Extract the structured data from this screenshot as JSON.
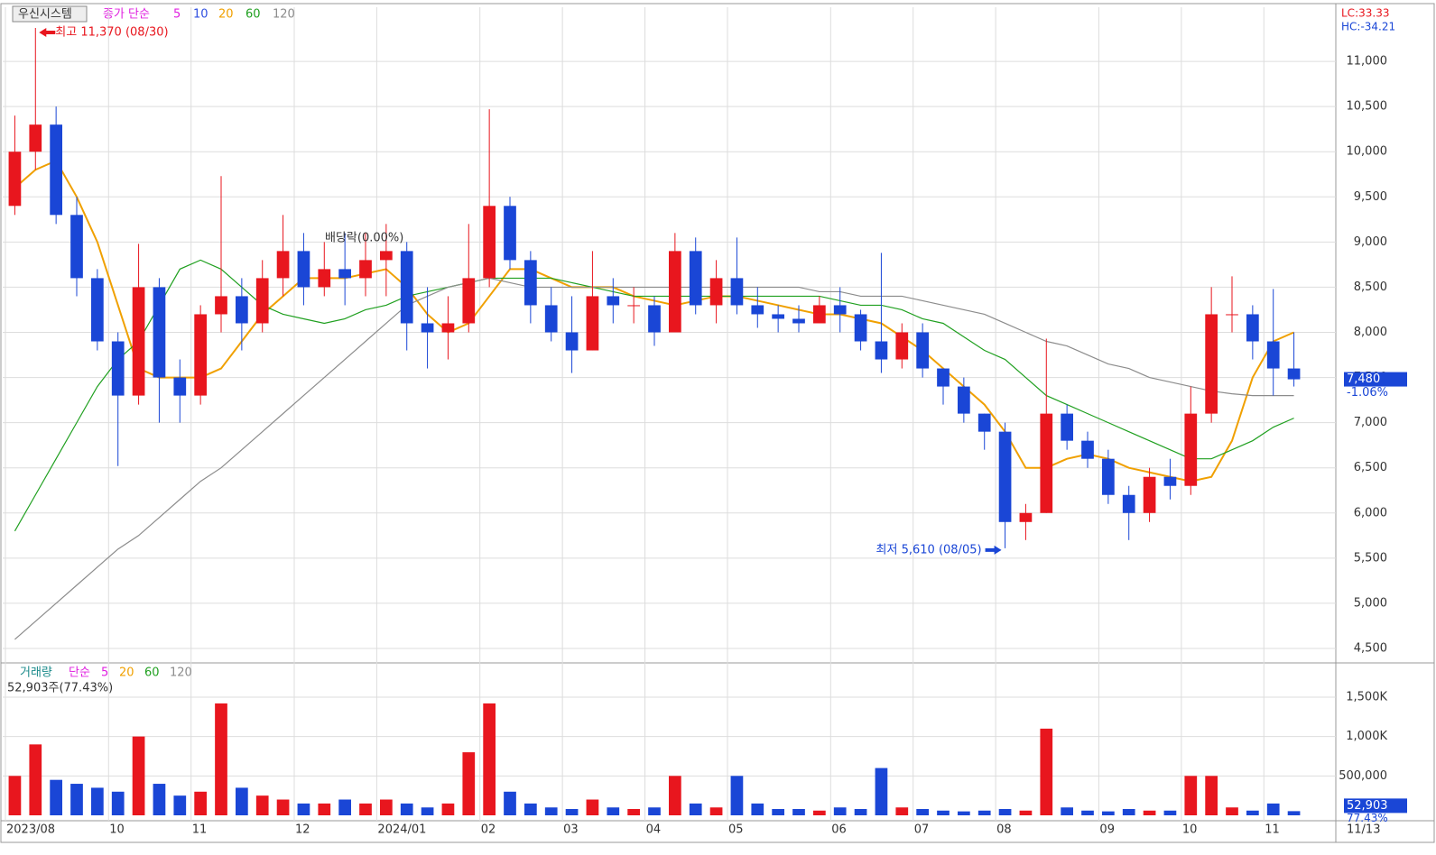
{
  "chart_data": {
    "type": "candlestick",
    "stock_name": "우신시스템",
    "price_legend": {
      "label": "종가 단순",
      "items": [
        {
          "name": "5",
          "color": "#e020e0"
        },
        {
          "name": "10",
          "color": "#2f4fe0"
        }
      ]
    },
    "categories": [
      "2023/08",
      null,
      null,
      null,
      null,
      "10",
      null,
      null,
      null,
      "11",
      null,
      null,
      null,
      null,
      "12",
      null,
      null,
      null,
      "2024/01",
      null,
      null,
      null,
      null,
      "02",
      null,
      null,
      null,
      "03",
      null,
      null,
      null,
      "04",
      null,
      null,
      null,
      "05",
      null,
      null,
      null,
      null,
      "06",
      null,
      null,
      null,
      "07",
      null,
      null,
      null,
      "08",
      null,
      null,
      null,
      null,
      "09",
      null,
      null,
      null,
      "10",
      null,
      null,
      null,
      "11",
      null
    ],
    "last_date": "11/13",
    "open": [
      9400,
      10000,
      10300,
      9300,
      8600,
      7900,
      7300,
      8500,
      7500,
      7300,
      8200,
      8400,
      8100,
      8600,
      8900,
      8500,
      8700,
      8600,
      8800,
      8900,
      8100,
      8000,
      8100,
      8600,
      9400,
      8800,
      8300,
      8000,
      7800,
      8400,
      8300,
      8300,
      8000,
      8900,
      8300,
      8600,
      8300,
      8200,
      8150,
      8100,
      8300,
      8200,
      7900,
      7700,
      8000,
      7600,
      7400,
      7100,
      6900,
      5900,
      6000,
      7100,
      6800,
      6600,
      6200,
      6000,
      6400,
      6300,
      7100,
      8200,
      8200,
      7900,
      7600
    ],
    "high": [
      10400,
      11370,
      10500,
      9500,
      8700,
      8000,
      8980,
      8600,
      7700,
      8300,
      9730,
      8600,
      8800,
      9300,
      9100,
      9000,
      9100,
      9100,
      9200,
      9000,
      8500,
      8400,
      9200,
      10470,
      9500,
      8900,
      8500,
      8400,
      8900,
      8600,
      8500,
      8400,
      9100,
      9050,
      8800,
      9050,
      8500,
      8300,
      8300,
      8400,
      8500,
      8250,
      8880,
      8100,
      8100,
      7600,
      7500,
      7100,
      7000,
      6100,
      7930,
      7200,
      6900,
      6700,
      6300,
      6500,
      6600,
      7400,
      8500,
      8620,
      8300,
      8480,
      8000
    ],
    "low": [
      9300,
      9800,
      9200,
      8400,
      7800,
      6520,
      7200,
      7000,
      7000,
      7200,
      8000,
      7800,
      8000,
      8400,
      8300,
      8400,
      8300,
      8400,
      8400,
      7800,
      7600,
      7700,
      8000,
      8500,
      8700,
      8100,
      7900,
      7550,
      7800,
      8100,
      8100,
      7850,
      8000,
      8200,
      8100,
      8200,
      8050,
      8000,
      8000,
      8100,
      8000,
      7800,
      7550,
      7600,
      7500,
      7200,
      7000,
      6700,
      5610,
      5700,
      6000,
      6700,
      6500,
      6100,
      5700,
      5900,
      6150,
      6200,
      7000,
      8000,
      7700,
      7300,
      7400
    ],
    "close": [
      10000,
      10300,
      9300,
      8600,
      7900,
      7300,
      8500,
      7500,
      7300,
      8200,
      8400,
      8100,
      8600,
      8900,
      8500,
      8700,
      8600,
      8800,
      8900,
      8100,
      8000,
      8100,
      8600,
      9400,
      8800,
      8300,
      8000,
      7800,
      8400,
      8300,
      8300,
      8000,
      8900,
      8300,
      8600,
      8300,
      8200,
      8150,
      8100,
      8300,
      8200,
      7900,
      7700,
      8000,
      7600,
      7400,
      7100,
      6900,
      5900,
      6000,
      7100,
      6800,
      6600,
      6200,
      6000,
      6400,
      6300,
      7100,
      8200,
      8200,
      7900,
      7600,
      7480
    ],
    "up_color": "#e8161e",
    "down_color": "#1a46d6",
    "moving_averages": [
      {
        "name": "20",
        "color": "#f0a000",
        "values": [
          9600,
          9800,
          9900,
          9500,
          9000,
          8300,
          7600,
          7500,
          7500,
          7500,
          7600,
          7900,
          8200,
          8400,
          8600,
          8600,
          8600,
          8650,
          8700,
          8500,
          8200,
          8000,
          8100,
          8400,
          8700,
          8700,
          8600,
          8500,
          8500,
          8500,
          8400,
          8350,
          8300,
          8350,
          8400,
          8400,
          8350,
          8300,
          8250,
          8200,
          8200,
          8150,
          8100,
          7950,
          7800,
          7600,
          7400,
          7200,
          6900,
          6500,
          6500,
          6600,
          6650,
          6600,
          6500,
          6450,
          6400,
          6350,
          6400,
          6800,
          7500,
          7900,
          8000
        ]
      },
      {
        "name": "60",
        "color": "#20a020",
        "values": [
          5800,
          6200,
          6600,
          7000,
          7400,
          7700,
          7900,
          8300,
          8700,
          8800,
          8700,
          8500,
          8300,
          8200,
          8150,
          8100,
          8150,
          8250,
          8300,
          8400,
          8450,
          8500,
          8550,
          8600,
          8600,
          8600,
          8600,
          8550,
          8500,
          8450,
          8400,
          8400,
          8400,
          8400,
          8400,
          8400,
          8400,
          8400,
          8400,
          8400,
          8350,
          8300,
          8300,
          8250,
          8150,
          8100,
          7950,
          7800,
          7700,
          7500,
          7300,
          7200,
          7100,
          7000,
          6900,
          6800,
          6700,
          6600,
          6600,
          6700,
          6800,
          6950,
          7050
        ]
      },
      {
        "name": "120",
        "color": "#8c8c8c",
        "values": [
          4600,
          4800,
          5000,
          5200,
          5400,
          5600,
          5750,
          5950,
          6150,
          6350,
          6500,
          6700,
          6900,
          7100,
          7300,
          7500,
          7700,
          7900,
          8100,
          8300,
          8400,
          8500,
          8550,
          8600,
          8550,
          8500,
          8500,
          8500,
          8500,
          8500,
          8500,
          8500,
          8500,
          8500,
          8500,
          8500,
          8500,
          8500,
          8500,
          8450,
          8450,
          8400,
          8400,
          8400,
          8350,
          8300,
          8250,
          8200,
          8100,
          8000,
          7900,
          7850,
          7750,
          7650,
          7600,
          7500,
          7450,
          7400,
          7350,
          7320,
          7300,
          7300,
          7300
        ]
      }
    ],
    "ylim": [
      4360,
      11600
    ],
    "yticks": [
      {
        "value": 4500,
        "label": "4,500"
      },
      {
        "value": 5000,
        "label": "5,000"
      },
      {
        "value": 5500,
        "label": "5,500"
      },
      {
        "value": 6000,
        "label": "6,000"
      },
      {
        "value": 6500,
        "label": "6,500"
      },
      {
        "value": 7000,
        "label": "7,000"
      },
      {
        "value": 7500,
        "label": "7,500"
      },
      {
        "value": 8000,
        "label": "8,000"
      },
      {
        "value": 8500,
        "label": "8,500"
      },
      {
        "value": 9000,
        "label": "9,000"
      },
      {
        "value": 9500,
        "label": "9,500"
      },
      {
        "value": 10000,
        "label": "10,000"
      },
      {
        "value": 10500,
        "label": "10,500"
      },
      {
        "value": 11000,
        "label": "11,000"
      }
    ],
    "grid": true,
    "annotations": {
      "high": "최고 11,370 (08/30)",
      "low": "최저 5,610 (08/05)",
      "dividend": "배당락(0.00%)",
      "lc": "LC:33.33",
      "hc": "HC:-34.21"
    },
    "current_price": {
      "value": 7480,
      "label": "7,480"
    },
    "change": "-1.06%",
    "volume_legend": {
      "label": "거래량",
      "ma_label": "단순",
      "items": [
        {
          "name": "5",
          "color": "#e020e0"
        },
        {
          "name": "20",
          "color": "#f0a000"
        },
        {
          "name": "60",
          "color": "#20a020"
        },
        {
          "name": "120",
          "color": "#8c8c8c"
        }
      ]
    },
    "volume_info": "52,903주(77.43%)",
    "volume": [
      500000,
      900000,
      450000,
      400000,
      350000,
      300000,
      1000000,
      400000,
      250000,
      300000,
      1420000,
      350000,
      250000,
      200000,
      150000,
      150000,
      200000,
      150000,
      200000,
      150000,
      100000,
      150000,
      800000,
      1420000,
      300000,
      150000,
      100000,
      80000,
      200000,
      100000,
      80000,
      100000,
      500000,
      150000,
      100000,
      500000,
      150000,
      80000,
      80000,
      60000,
      100000,
      80000,
      600000,
      100000,
      80000,
      60000,
      50000,
      60000,
      80000,
      60000,
      1100000,
      100000,
      60000,
      50000,
      80000,
      60000,
      60000,
      500000,
      500000,
      100000,
      60000,
      150000,
      52903
    ],
    "current_volume": {
      "value": 52903,
      "label": "52,903"
    },
    "volume_ratio": "77.43%",
    "volume_ylim": [
      0,
      1900000
    ],
    "volume_yticks": [
      {
        "value": 500000,
        "label": "500,000"
      },
      {
        "value": 1000000,
        "label": "1,000K"
      },
      {
        "value": 1500000,
        "label": "1,500K"
      }
    ]
  }
}
